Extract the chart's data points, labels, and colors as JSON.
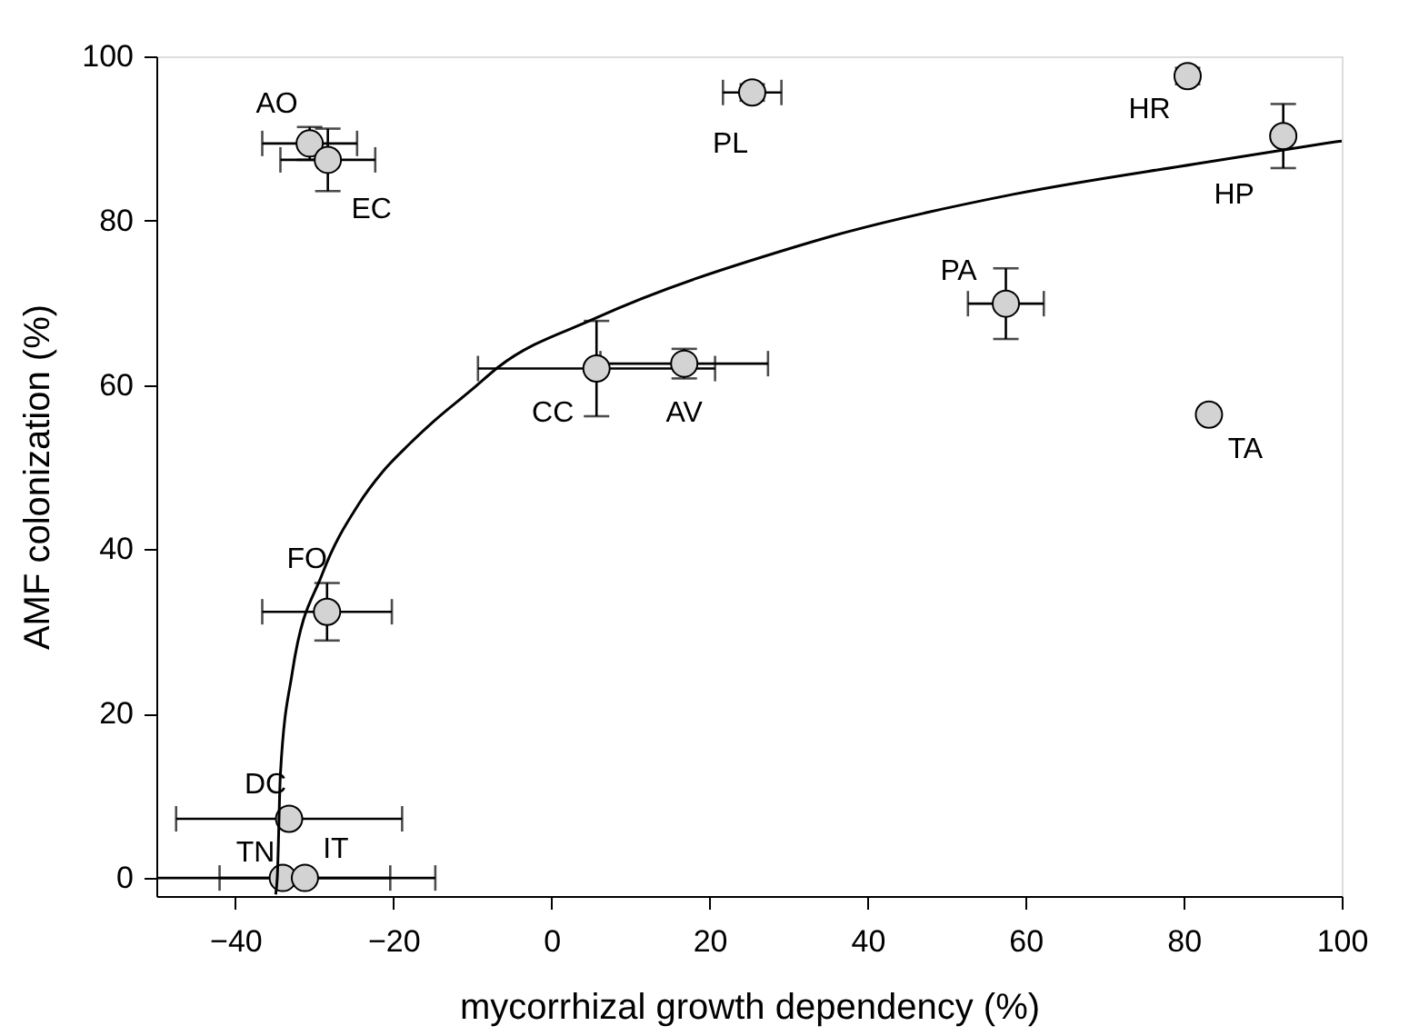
{
  "chart_data": {
    "type": "scatter",
    "xlabel": "mycorrhizal growth dependency (%)",
    "ylabel": "AMF colonization (%)",
    "xlim": [
      -50,
      100
    ],
    "xticks": [
      -40,
      -20,
      0,
      20,
      40,
      60,
      80,
      100
    ],
    "ylim": [
      -2.2,
      100
    ],
    "yticks": [
      0,
      20,
      40,
      60,
      80,
      100
    ],
    "grid": false,
    "marker": "circle",
    "series": [
      {
        "color": "#d3d3d3",
        "x": [
          -30.6,
          -28.3,
          25.4,
          80.5,
          92.6,
          57.5,
          83.2,
          5.7,
          16.8,
          -28.4,
          -33.2,
          -34,
          -31.2
        ],
        "values": [
          89.4,
          87.4,
          95.6,
          97.6,
          90.3,
          69.9,
          56.4,
          62,
          62.6,
          32.4,
          7.2,
          0,
          0
        ],
        "errors": [
          2,
          3.8,
          1,
          1,
          3.9,
          4.3,
          null,
          5.8,
          1.8,
          3.5,
          null,
          null,
          null
        ],
        "xerrors": [
          6,
          6,
          3.7,
          null,
          null,
          4.8,
          null,
          15,
          10.6,
          8.2,
          14.3,
          [
            -50,
            -14.7
          ],
          10.8
        ]
      },
      {
        "type": "line",
        "color": "#000000",
        "line_style": "solid",
        "marker": "none",
        "x": [
          -34.9,
          -34.7,
          -34.3,
          -32.8,
          -29,
          -24.4,
          -21.4,
          -18,
          -15,
          -10,
          -6.7,
          5.5,
          30.8,
          35.4,
          58.4,
          81.4,
          97.9,
          100
        ],
        "values": [
          -2,
          0,
          12.7,
          25,
          37,
          45.5,
          49.4,
          52.8,
          55.5,
          59.5,
          62.2,
          68.1,
          76.8,
          78.1,
          83.2,
          86.9,
          89.4,
          89.7
        ]
      }
    ],
    "annotations": [
      {
        "text": "AO",
        "x": -30.6,
        "y": 89.4
      },
      {
        "text": "EC",
        "x": -28.3,
        "y": 87.4
      },
      {
        "text": "PL",
        "x": 25.4,
        "y": 95.6
      },
      {
        "text": "HR",
        "x": 80.5,
        "y": 97.6
      },
      {
        "text": "HP",
        "x": 92.6,
        "y": 90.3
      },
      {
        "text": "PA",
        "x": 57.5,
        "y": 69.9
      },
      {
        "text": "TA",
        "x": 83.2,
        "y": 56.4
      },
      {
        "text": "CC",
        "x": 5.7,
        "y": 62
      },
      {
        "text": "AV",
        "x": 16.8,
        "y": 62.6
      },
      {
        "text": "FO",
        "x": -28.4,
        "y": 32.4
      },
      {
        "text": "DC",
        "x": -33.2,
        "y": 7.2
      },
      {
        "text": "TN",
        "x": -34,
        "y": 0
      },
      {
        "text": "IT",
        "x": -31.2,
        "y": 0
      }
    ]
  }
}
